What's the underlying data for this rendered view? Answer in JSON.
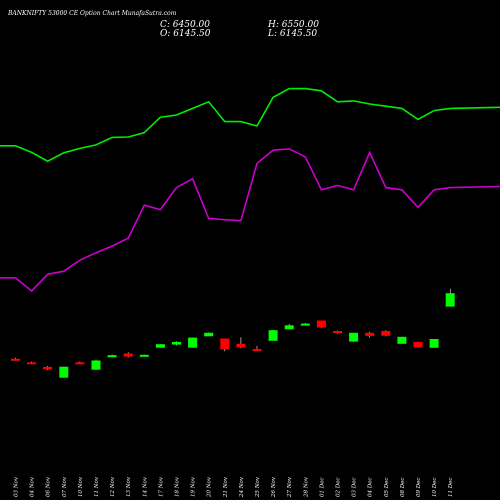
{
  "header": {
    "title": "BANKNIFTY 53000  CE Option  Chart MunafaSutra.com",
    "close": "C: 6450.00",
    "open": "O: 6145.50",
    "high": "H: 6550.00",
    "low": "L: 6145.50"
  },
  "colors": {
    "background": "#000000",
    "up": "#00ff00",
    "down": "#ff0000",
    "line_green": "#00ee00",
    "line_purple": "#cc00cc"
  },
  "chart_data": {
    "type": "candlestick",
    "grid": false,
    "categories": [
      "03 Nov",
      "04 Nov",
      "06 Nov",
      "07 Nov",
      "10 Nov",
      "11 Nov",
      "12 Nov",
      "13 Nov",
      "14 Nov",
      "17 Nov",
      "18 Nov",
      "19 Nov",
      "20 Nov",
      "21 Nov",
      "24 Nov",
      "25 Nov",
      "26 Nov",
      "27 Nov",
      "28 Nov",
      "01 Dec",
      "02 Dec",
      "03 Dec",
      "04 Dec",
      "05 Dec",
      "08 Dec",
      "09 Dec",
      "10 Dec",
      "11 Dec"
    ],
    "candles": [
      {
        "open": 4960,
        "high": 4985,
        "low": 4935,
        "close": 4935
      },
      {
        "open": 4880,
        "high": 4895,
        "low": 4835,
        "close": 4845
      },
      {
        "open": 4775,
        "high": 4795,
        "low": 4705,
        "close": 4720
      },
      {
        "open": 4530,
        "high": 4780,
        "low": 4530,
        "close": 4780
      },
      {
        "open": 4880,
        "high": 4900,
        "low": 4860,
        "close": 4865
      },
      {
        "open": 4710,
        "high": 4940,
        "low": 4710,
        "close": 4920
      },
      {
        "open": 5020,
        "high": 5055,
        "low": 5000,
        "close": 5040
      },
      {
        "open": 5080,
        "high": 5110,
        "low": 4990,
        "close": 5010
      },
      {
        "open": 5020,
        "high": 5055,
        "low": 5005,
        "close": 5050
      },
      {
        "open": 5210,
        "high": 5290,
        "low": 5210,
        "close": 5290
      },
      {
        "open": 5280,
        "high": 5360,
        "low": 5260,
        "close": 5340
      },
      {
        "open": 5210,
        "high": 5440,
        "low": 5210,
        "close": 5440
      },
      {
        "open": 5470,
        "high": 5560,
        "low": 5470,
        "close": 5550
      },
      {
        "open": 5420,
        "high": 5420,
        "low": 5130,
        "close": 5175
      },
      {
        "open": 5300,
        "high": 5450,
        "low": 5200,
        "close": 5220
      },
      {
        "open": 5180,
        "high": 5250,
        "low": 5150,
        "close": 5165
      },
      {
        "open": 5370,
        "high": 5620,
        "low": 5370,
        "close": 5610
      },
      {
        "open": 5630,
        "high": 5750,
        "low": 5630,
        "close": 5720
      },
      {
        "open": 5740,
        "high": 5775,
        "low": 5720,
        "close": 5760
      },
      {
        "open": 5830,
        "high": 5830,
        "low": 5650,
        "close": 5670
      },
      {
        "open": 5590,
        "high": 5600,
        "low": 5530,
        "close": 5550
      },
      {
        "open": 5350,
        "high": 5550,
        "low": 5340,
        "close": 5550
      },
      {
        "open": 5550,
        "high": 5570,
        "low": 5440,
        "close": 5480
      },
      {
        "open": 5590,
        "high": 5610,
        "low": 5470,
        "close": 5480
      },
      {
        "open": 5300,
        "high": 5460,
        "low": 5300,
        "close": 5460
      },
      {
        "open": 5340,
        "high": 5345,
        "low": 5210,
        "close": 5220
      },
      {
        "open": 5210,
        "high": 5410,
        "low": 5210,
        "close": 5410
      },
      {
        "open": 6145.5,
        "high": 6550,
        "low": 6145.5,
        "close": 6450
      }
    ],
    "lines": [
      {
        "color": "#00ee00",
        "values": [
          9800,
          9650,
          9450,
          9640,
          9740,
          9820,
          9990,
          10000,
          10100,
          10450,
          10500,
          10650,
          10800,
          10350,
          10350,
          10250,
          10900,
          11100,
          11100,
          11050,
          10800,
          10820,
          10750,
          10700,
          10650,
          10400,
          10600,
          10650
        ]
      },
      {
        "color": "#cc00cc",
        "values": [
          6800,
          6500,
          6880,
          6950,
          7200,
          7370,
          7520,
          7700,
          8450,
          8350,
          8850,
          9050,
          8150,
          8120,
          8100,
          9400,
          9700,
          9730,
          9550,
          8800,
          8900,
          8800,
          9650,
          8850,
          8800,
          8400,
          8800,
          8850
        ]
      }
    ],
    "yrange": [
      3000,
      13000
    ]
  }
}
